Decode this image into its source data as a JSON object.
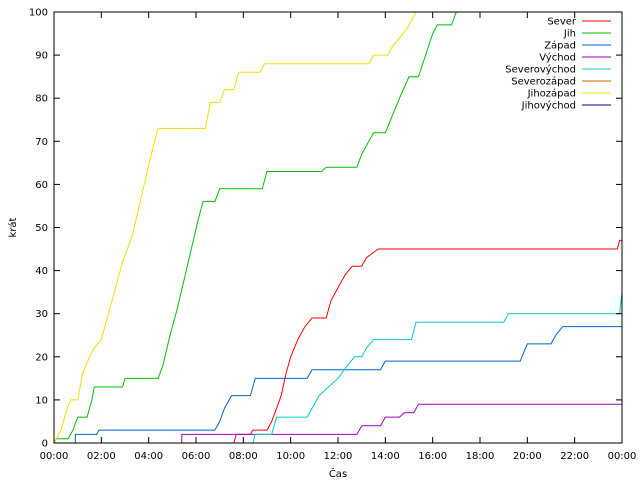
{
  "chart_data": {
    "type": "line",
    "title": "",
    "xlabel": "Čas",
    "ylabel": "krát",
    "xlim": [
      0,
      24
    ],
    "ylim": [
      0,
      100
    ],
    "grid": false,
    "legend_position": "top-right",
    "x_ticks": [
      {
        "value": 0,
        "label": "00:00"
      },
      {
        "value": 2,
        "label": "02:00"
      },
      {
        "value": 4,
        "label": "04:00"
      },
      {
        "value": 6,
        "label": "06:00"
      },
      {
        "value": 8,
        "label": "08:00"
      },
      {
        "value": 10,
        "label": "10:00"
      },
      {
        "value": 12,
        "label": "12:00"
      },
      {
        "value": 14,
        "label": "14:00"
      },
      {
        "value": 16,
        "label": "16:00"
      },
      {
        "value": 18,
        "label": "18:00"
      },
      {
        "value": 20,
        "label": "20:00"
      },
      {
        "value": 22,
        "label": "22:00"
      },
      {
        "value": 24,
        "label": "00:00"
      }
    ],
    "y_ticks": [
      {
        "value": 0,
        "label": "0"
      },
      {
        "value": 10,
        "label": "10"
      },
      {
        "value": 20,
        "label": "20"
      },
      {
        "value": 30,
        "label": "30"
      },
      {
        "value": 40,
        "label": "40"
      },
      {
        "value": 50,
        "label": "50"
      },
      {
        "value": 60,
        "label": "60"
      },
      {
        "value": 70,
        "label": "70"
      },
      {
        "value": 80,
        "label": "80"
      },
      {
        "value": 90,
        "label": "90"
      },
      {
        "value": 100,
        "label": "100"
      }
    ],
    "series": [
      {
        "name": "Sever",
        "color": "#ff0000",
        "points": [
          [
            0,
            0
          ],
          [
            7.6,
            0
          ],
          [
            7.7,
            2
          ],
          [
            8.3,
            2
          ],
          [
            8.4,
            3
          ],
          [
            9.0,
            3
          ],
          [
            9.2,
            5
          ],
          [
            9.4,
            8
          ],
          [
            9.6,
            11
          ],
          [
            9.8,
            16
          ],
          [
            10.0,
            20
          ],
          [
            10.3,
            24
          ],
          [
            10.6,
            27
          ],
          [
            10.9,
            29
          ],
          [
            11.5,
            29
          ],
          [
            11.7,
            33
          ],
          [
            12.0,
            36
          ],
          [
            12.3,
            39
          ],
          [
            12.6,
            41
          ],
          [
            13.0,
            41
          ],
          [
            13.2,
            43
          ],
          [
            13.7,
            45
          ],
          [
            23.8,
            45
          ],
          [
            23.9,
            47
          ],
          [
            24,
            47
          ]
        ]
      },
      {
        "name": "Jih",
        "color": "#00c000",
        "points": [
          [
            0,
            0
          ],
          [
            0.1,
            1
          ],
          [
            0.6,
            1
          ],
          [
            0.8,
            3
          ],
          [
            1.0,
            6
          ],
          [
            1.4,
            6
          ],
          [
            1.6,
            10
          ],
          [
            1.7,
            13
          ],
          [
            2.9,
            13
          ],
          [
            3.0,
            15
          ],
          [
            4.4,
            15
          ],
          [
            4.6,
            18
          ],
          [
            4.9,
            25
          ],
          [
            5.2,
            31
          ],
          [
            5.5,
            38
          ],
          [
            5.8,
            45
          ],
          [
            6.1,
            52
          ],
          [
            6.3,
            56
          ],
          [
            6.8,
            56
          ],
          [
            7.0,
            59
          ],
          [
            8.8,
            59
          ],
          [
            9.0,
            63
          ],
          [
            11.3,
            63
          ],
          [
            11.5,
            64
          ],
          [
            12.8,
            64
          ],
          [
            13.0,
            67
          ],
          [
            13.3,
            70
          ],
          [
            13.5,
            72
          ],
          [
            14.0,
            72
          ],
          [
            14.3,
            76
          ],
          [
            14.6,
            80
          ],
          [
            15.0,
            85
          ],
          [
            15.4,
            85
          ],
          [
            15.7,
            90
          ],
          [
            16.0,
            95
          ],
          [
            16.2,
            97
          ],
          [
            16.8,
            97
          ],
          [
            17.0,
            100
          ]
        ]
      },
      {
        "name": "Západ",
        "color": "#0066cc",
        "points": [
          [
            0,
            0
          ],
          [
            0.9,
            0
          ],
          [
            0.9,
            2
          ],
          [
            1.8,
            2
          ],
          [
            1.9,
            3
          ],
          [
            6.8,
            3
          ],
          [
            7.0,
            5
          ],
          [
            7.2,
            8
          ],
          [
            7.5,
            11
          ],
          [
            8.3,
            11
          ],
          [
            8.5,
            15
          ],
          [
            10.7,
            15
          ],
          [
            10.9,
            17
          ],
          [
            13.8,
            17
          ],
          [
            14.0,
            19
          ],
          [
            19.7,
            19
          ],
          [
            20.0,
            23
          ],
          [
            21.0,
            23
          ],
          [
            21.2,
            25
          ],
          [
            21.5,
            27
          ],
          [
            24,
            27
          ]
        ]
      },
      {
        "name": "Východ",
        "color": "#a000c0",
        "points": [
          [
            0,
            0
          ],
          [
            5.4,
            0
          ],
          [
            5.4,
            2
          ],
          [
            12.8,
            2
          ],
          [
            13.0,
            4
          ],
          [
            13.8,
            4
          ],
          [
            14.0,
            6
          ],
          [
            14.6,
            6
          ],
          [
            14.8,
            7
          ],
          [
            15.2,
            7
          ],
          [
            15.4,
            9
          ],
          [
            24,
            9
          ]
        ]
      },
      {
        "name": "Severovýchod",
        "color": "#00cccc",
        "points": [
          [
            0,
            0
          ],
          [
            8.4,
            0
          ],
          [
            8.5,
            2
          ],
          [
            9.2,
            2
          ],
          [
            9.4,
            6
          ],
          [
            10.7,
            6
          ],
          [
            10.9,
            8
          ],
          [
            11.2,
            11
          ],
          [
            11.6,
            13
          ],
          [
            12.0,
            15
          ],
          [
            12.4,
            18
          ],
          [
            12.7,
            20
          ],
          [
            13.0,
            20
          ],
          [
            13.2,
            22
          ],
          [
            13.5,
            24
          ],
          [
            15.1,
            24
          ],
          [
            15.3,
            28
          ],
          [
            19.0,
            28
          ],
          [
            19.2,
            30
          ],
          [
            23.9,
            30
          ],
          [
            24,
            35
          ]
        ]
      },
      {
        "name": "Severozápad",
        "color": "#cc6600",
        "points": [
          [
            0,
            0
          ],
          [
            24,
            0
          ]
        ]
      },
      {
        "name": "Jihozápad",
        "color": "#f2e000",
        "points": [
          [
            0,
            0
          ],
          [
            0.3,
            3
          ],
          [
            0.5,
            7
          ],
          [
            0.7,
            10
          ],
          [
            1.0,
            10
          ],
          [
            1.2,
            16
          ],
          [
            1.5,
            20
          ],
          [
            1.7,
            22
          ],
          [
            2.0,
            24
          ],
          [
            2.3,
            30
          ],
          [
            2.6,
            36
          ],
          [
            2.9,
            42
          ],
          [
            3.1,
            45
          ],
          [
            3.3,
            48
          ],
          [
            3.6,
            55
          ],
          [
            3.9,
            62
          ],
          [
            4.2,
            69
          ],
          [
            4.4,
            73
          ],
          [
            6.4,
            73
          ],
          [
            6.6,
            79
          ],
          [
            7.0,
            79
          ],
          [
            7.2,
            82
          ],
          [
            7.6,
            82
          ],
          [
            7.8,
            86
          ],
          [
            8.7,
            86
          ],
          [
            8.9,
            88
          ],
          [
            13.3,
            88
          ],
          [
            13.5,
            90
          ],
          [
            14.1,
            90
          ],
          [
            14.3,
            92
          ],
          [
            14.6,
            94
          ],
          [
            14.9,
            96
          ],
          [
            15.1,
            98
          ],
          [
            15.3,
            100
          ]
        ]
      },
      {
        "name": "Jihovýchod",
        "color": "#00008b",
        "points": [
          [
            0,
            0
          ],
          [
            24,
            0
          ]
        ]
      }
    ]
  }
}
